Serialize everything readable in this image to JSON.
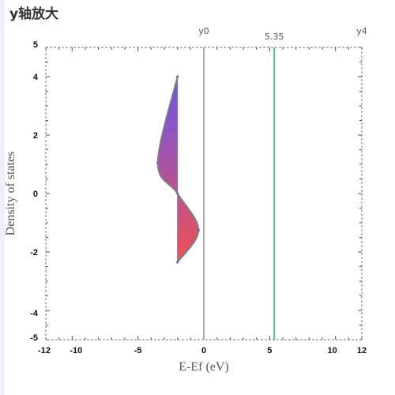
{
  "page_title": "y轴放大",
  "chart_data": {
    "type": "area",
    "title": "y轴放大",
    "xlabel": "E-Ef (eV)",
    "ylabel": "Density of states",
    "xlim": [
      -12,
      12
    ],
    "ylim": [
      -5,
      5
    ],
    "x_ticks": [
      -12,
      -10,
      -5,
      0,
      5,
      10,
      12
    ],
    "y_ticks": [
      -5,
      -4,
      -2,
      0,
      2,
      4,
      5
    ],
    "grid": false,
    "series": [
      {
        "x": [
          -2,
          -3.5,
          -2,
          -0.4,
          -2
        ],
        "y": [
          4.0,
          1.05,
          0,
          -1.25,
          -2.35
        ],
        "fill_gradient": [
          "#6a55ee",
          "#f05050"
        ]
      }
    ],
    "reference_lines": [
      {
        "label": "y0",
        "x": 0,
        "color": "#555555"
      },
      {
        "label": "5.35",
        "x": 5.35,
        "color": "#5fb88a"
      },
      {
        "label": "y4",
        "x": 12,
        "color": "#888888"
      }
    ]
  }
}
